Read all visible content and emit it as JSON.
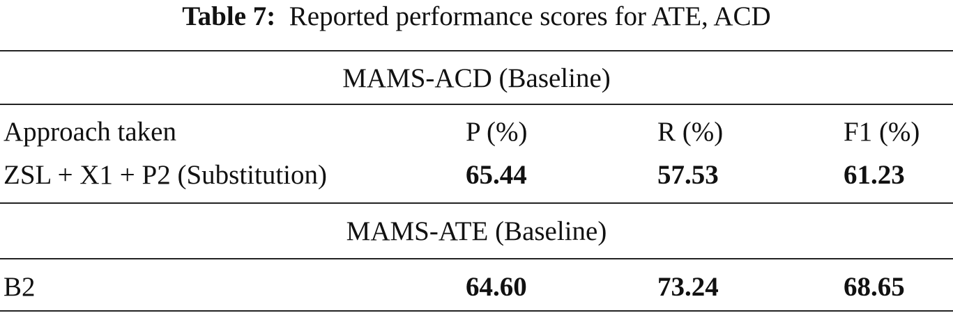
{
  "caption": {
    "label": "Table 7:",
    "text": "Reported performance scores for ATE, ACD"
  },
  "table": {
    "sections": [
      {
        "title": "MAMS-ACD (Baseline)",
        "header": [
          "Approach taken",
          "P (%)",
          "R (%)",
          "F1 (%)"
        ],
        "rows": [
          [
            "ZSL + X1 + P2 (Substitution)",
            "65.44",
            "57.53",
            "61.23"
          ]
        ]
      },
      {
        "title": "MAMS-ATE (Baseline)",
        "rows": [
          [
            "B2",
            "64.60",
            "73.24",
            "68.65"
          ]
        ]
      }
    ]
  }
}
